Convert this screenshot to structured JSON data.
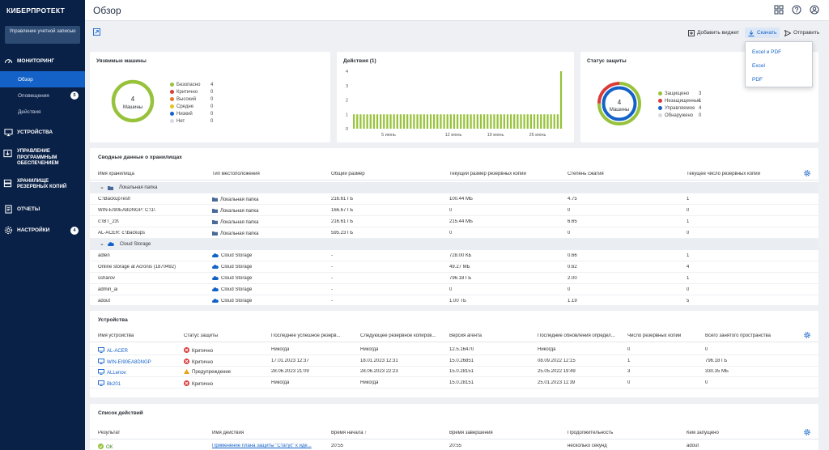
{
  "brand": {
    "logo": "КИБЕРПРОТЕКТ",
    "account_button": "Управление учетной записью"
  },
  "nav": {
    "monitoring": "МОНИТОРИНГ",
    "overview": "Обзор",
    "alerts": "Оповещения",
    "alerts_count": "5",
    "activities": "Действия",
    "devices": "УСТРОЙСТВА",
    "software": "УПРАВЛЕНИЕ ПРОГРАММНЫМ ОБЕСПЕЧЕНИЕМ",
    "storages": "ХРАНИЛИЩЕ РЕЗЕРВНЫХ КОПИЙ",
    "reports": "ОТЧЕТЫ",
    "settings": "НАСТРОЙКИ",
    "settings_count": "4"
  },
  "header": {
    "title": "Обзор"
  },
  "toolbar": {
    "add_widget": "Добавить виджет",
    "download": "Скачать",
    "send": "Отправить"
  },
  "dropdown": {
    "items": [
      "Excel и PDF",
      "Excel",
      "PDF"
    ]
  },
  "colors": {
    "accent": "#1462c8",
    "sidebar": "#0a2147",
    "green": "#97c23b",
    "red": "#d93b3b",
    "blue": "#1462c8",
    "orange": "#e8a317"
  },
  "vulnerable": {
    "title": "Уязвимые машины",
    "total": "4",
    "center_label": "Машины",
    "legend": [
      {
        "label": "Безопасно",
        "count": "4",
        "color": "#97c23b"
      },
      {
        "label": "Критично",
        "count": "0",
        "color": "#d93b3b"
      },
      {
        "label": "Высокий",
        "count": "0",
        "color": "#e8762b"
      },
      {
        "label": "Средне",
        "count": "0",
        "color": "#e8c317"
      },
      {
        "label": "Низкий",
        "count": "0",
        "color": "#1462c8"
      },
      {
        "label": "Нет",
        "count": "0",
        "color": "#d6dbe2"
      }
    ]
  },
  "activities": {
    "title": "Действия (1)"
  },
  "protection": {
    "title": "Статус защиты",
    "total": "4",
    "center_label": "Машины",
    "legend": [
      {
        "label": "Защищено",
        "count": "3",
        "color": "#97c23b"
      },
      {
        "label": "Незащищенные",
        "count": "1",
        "color": "#d93b3b"
      },
      {
        "label": "Управляемое",
        "count": "4",
        "color": "#1462c8"
      },
      {
        "label": "Обнаружено",
        "count": "0",
        "color": "#d6dbe2"
      }
    ]
  },
  "chart_data": {
    "type": "bar",
    "title": "Действия (1)",
    "ylim": [
      0,
      4
    ],
    "y_ticks": [
      "0",
      "1",
      "2",
      "3",
      "4"
    ],
    "x_ticks": [
      "5 июнь",
      "12 июнь",
      "19 июнь",
      "26 июнь"
    ],
    "values": [
      1,
      1,
      1,
      1,
      1,
      1,
      1,
      1,
      1,
      1,
      1,
      1,
      1,
      1,
      1,
      1,
      1,
      1,
      1,
      1,
      1,
      1,
      1,
      1,
      1,
      1,
      1,
      1,
      1,
      1,
      1,
      1,
      1,
      1,
      1,
      1,
      1,
      1,
      1,
      1,
      1,
      1,
      1,
      1,
      1,
      1,
      1,
      1,
      1,
      1,
      1,
      1,
      1,
      1,
      1,
      1,
      1,
      1,
      1,
      1,
      1,
      1,
      4
    ],
    "color": "#97c23b"
  },
  "storage": {
    "title": "Сводные данные о хранилищах",
    "columns": [
      "Имя хранилища",
      "Тип местоположения",
      "Общий размер",
      "Текущий размер резервных копий",
      "Степень сжатия",
      "Текущее число резервных копий"
    ],
    "groups": [
      {
        "name": "Локальная папка",
        "rows": [
          [
            "C:\\BackupTest\\",
            "Локальная папка",
            "216.61 ГБ",
            "100.44 МБ",
            "4.75",
            "1"
          ],
          [
            "WIN-EI90EA8DNGP: C:\\1\\",
            "Локальная папка",
            "166.67 ГБ",
            "0",
            "0",
            "0"
          ],
          [
            "c:\\BT_23\\",
            "Локальная папка",
            "216.61 ГБ",
            "215.44 МБ",
            "6.65",
            "1"
          ],
          [
            "AL-ACER: c:\\backups",
            "Локальная папка",
            "595.23 ГБ",
            "0",
            "0",
            "0"
          ]
        ]
      },
      {
        "name": "Cloud Storage",
        "rows": [
          [
            "adlen",
            "Cloud Storage",
            "-",
            "728.00 КБ",
            "0.66",
            "1"
          ],
          [
            "Online storage at Acronis (1870492)",
            "Cloud Storage",
            "-",
            "49.27 МБ",
            "0.62",
            "4"
          ],
          [
            "ssharov",
            "Cloud Storage",
            "-",
            "796.18 ГБ",
            "2.00",
            "1"
          ],
          [
            "admin_ai",
            "Cloud Storage",
            "-",
            "0",
            "0",
            "0"
          ],
          [
            "adout",
            "Cloud Storage",
            "-",
            "1.00 ТБ",
            "1.19",
            "5"
          ]
        ]
      }
    ]
  },
  "devices": {
    "title": "Устройства",
    "columns": [
      "Имя устройства",
      "Статус защиты",
      "Последнее успешное резерв...",
      "Следующее резервное копиров...",
      "Версия агента",
      "Последние обновления определ...",
      "Число резервных копий",
      "Всего занятого пространства"
    ],
    "rows": [
      {
        "name": "AL-ACER",
        "status": "Критично",
        "status_kind": "critical",
        "last": "Никогда",
        "next": "Никогда",
        "agent": "12.5.16470",
        "updates": "Никогда",
        "count": "0",
        "space": "0"
      },
      {
        "name": "WIN-EI90EA8DNGP",
        "status": "Критично",
        "status_kind": "critical",
        "last": "17.01.2023 12:37",
        "next": "18.01.2023 12:31",
        "agent": "15.0.26851",
        "updates": "08.09.2022 12:15",
        "count": "1",
        "space": "796.18 ГБ"
      },
      {
        "name": "ALLenov",
        "status": "Предупреждение",
        "status_kind": "warning",
        "last": "28.06.2023 21:09",
        "next": "28.06.2023 22:23",
        "agent": "15.0.28151",
        "updates": "25.05.2022 19:49",
        "count": "3",
        "space": "330.35 МБ"
      },
      {
        "name": "Bk201",
        "status": "Критично",
        "status_kind": "critical",
        "last": "Никогда",
        "next": "Никогда",
        "agent": "15.0.28151",
        "updates": "25.01.2023 11:39",
        "count": "0",
        "space": "0"
      }
    ]
  },
  "actions": {
    "title": "Список действий",
    "columns": [
      "Результат",
      "Имя действия",
      "Время начала",
      "Время завершения",
      "Продолжительность",
      "Кем запущено"
    ],
    "sort_indicator": "↑",
    "rows": [
      [
        "OK",
        "Применение плана защиты \"Статус\" к иде...",
        "20:55",
        "20:55",
        "несколько секунд",
        "adout"
      ]
    ]
  }
}
